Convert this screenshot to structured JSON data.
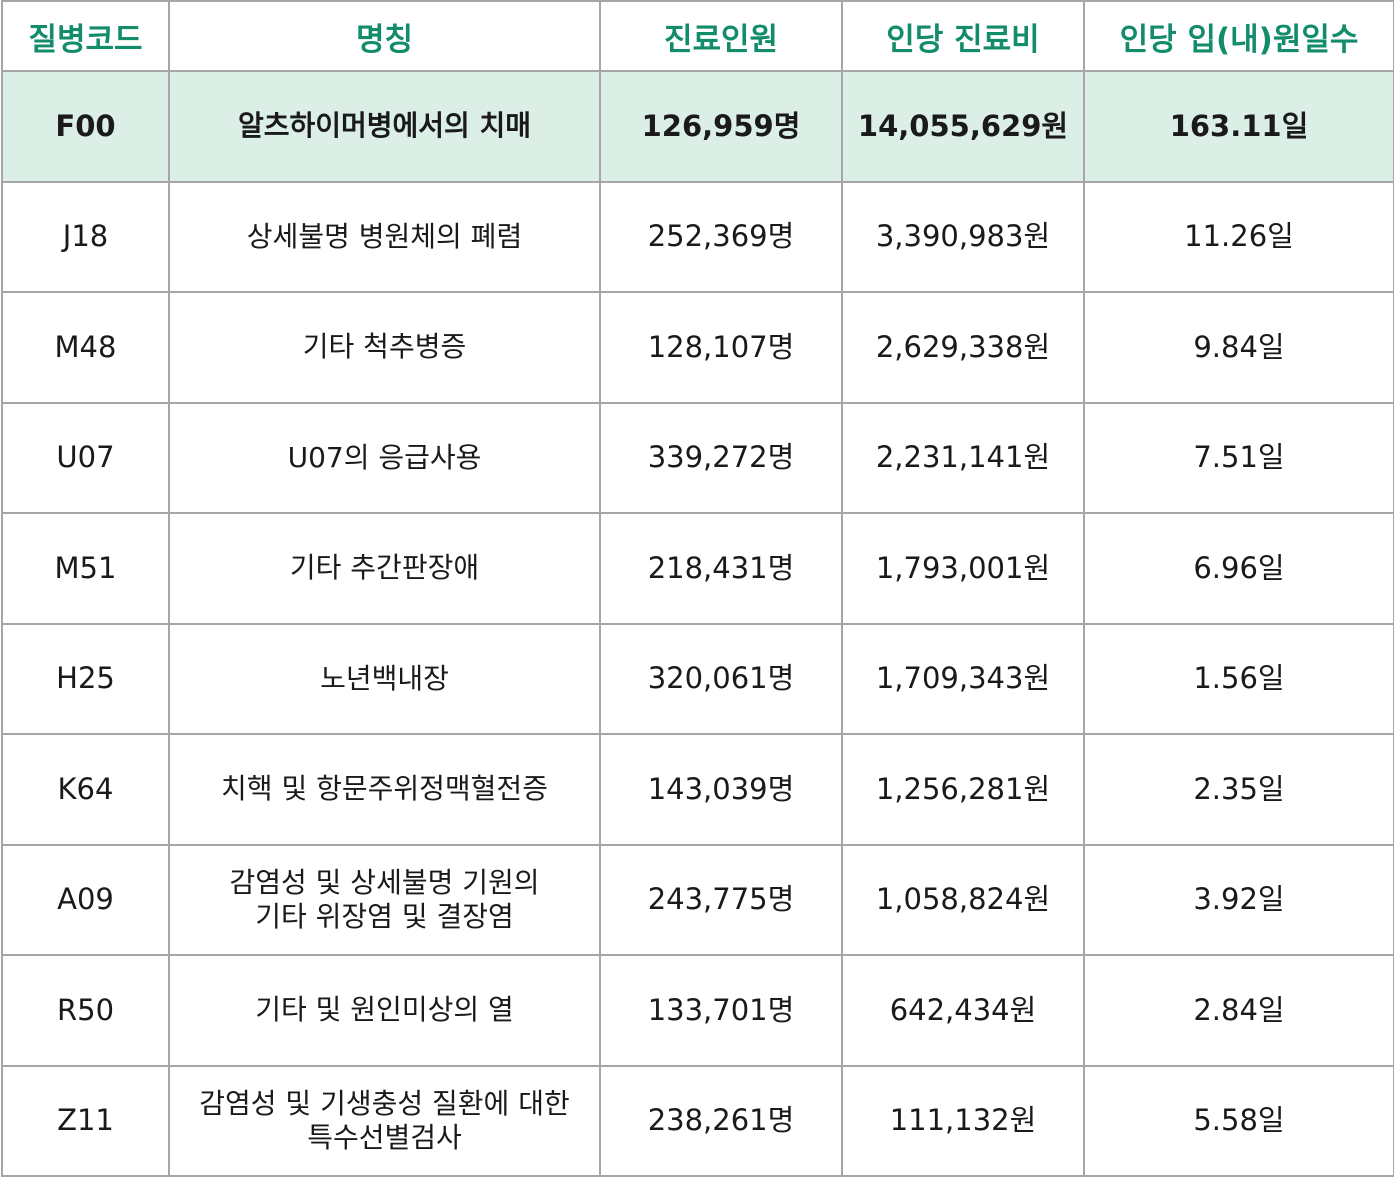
{
  "table": {
    "headers": [
      "질병코드",
      "명칭",
      "진료인원",
      "인당 진료비",
      "인당 입(내)원일수"
    ],
    "rows": [
      {
        "code": "F00",
        "name": "알츠하이머병에서의 치매",
        "name2": "",
        "patients": "126,959명",
        "cost": "14,055,629원",
        "days": "163.11일",
        "highlight": true
      },
      {
        "code": "J18",
        "name": "상세불명 병원체의 폐렴",
        "name2": "",
        "patients": "252,369명",
        "cost": "3,390,983원",
        "days": "11.26일",
        "highlight": false
      },
      {
        "code": "M48",
        "name": "기타 척추병증",
        "name2": "",
        "patients": "128,107명",
        "cost": "2,629,338원",
        "days": "9.84일",
        "highlight": false
      },
      {
        "code": "U07",
        "name": "U07의 응급사용",
        "name2": "",
        "patients": "339,272명",
        "cost": "2,231,141원",
        "days": "7.51일",
        "highlight": false
      },
      {
        "code": "M51",
        "name": "기타 추간판장애",
        "name2": "",
        "patients": "218,431명",
        "cost": "1,793,001원",
        "days": "6.96일",
        "highlight": false
      },
      {
        "code": "H25",
        "name": "노년백내장",
        "name2": "",
        "patients": "320,061명",
        "cost": "1,709,343원",
        "days": "1.56일",
        "highlight": false
      },
      {
        "code": "K64",
        "name": "치핵 및 항문주위정맥혈전증",
        "name2": "",
        "patients": "143,039명",
        "cost": "1,256,281원",
        "days": "2.35일",
        "highlight": false
      },
      {
        "code": "A09",
        "name": "감염성 및 상세불명 기원의",
        "name2": "기타 위장염 및 결장염",
        "patients": "243,775명",
        "cost": "1,058,824원",
        "days": "3.92일",
        "highlight": false
      },
      {
        "code": "R50",
        "name": "기타 및 원인미상의 열",
        "name2": "",
        "patients": "133,701명",
        "cost": "642,434원",
        "days": "2.84일",
        "highlight": false
      },
      {
        "code": "Z11",
        "name": "감염성 및 기생충성 질환에 대한",
        "name2": "특수선별검사",
        "patients": "238,261명",
        "cost": "111,132원",
        "days": "5.58일",
        "highlight": false
      }
    ]
  },
  "colors": {
    "header_text": "#138c6b",
    "highlight_bg": "#dcefe7",
    "border": "#a6a6a6"
  }
}
